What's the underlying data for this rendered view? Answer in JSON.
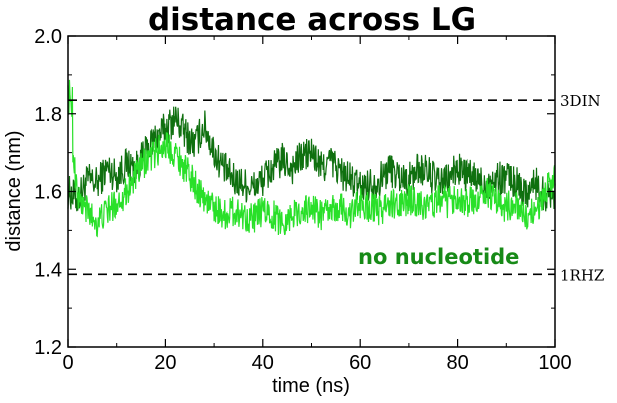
{
  "chart_data": {
    "type": "line",
    "title": "distance across LG",
    "xlabel": "time (ns)",
    "ylabel": "distance (nm)",
    "xlim": [
      0,
      100
    ],
    "ylim": [
      1.2,
      2.0
    ],
    "x_ticks": [
      0,
      20,
      40,
      60,
      80,
      100
    ],
    "x_tick_labels": [
      "0",
      "20",
      "40",
      "60",
      "80",
      "100"
    ],
    "y_ticks": [
      1.2,
      1.4,
      1.6,
      1.8,
      2.0
    ],
    "y_tick_labels": [
      "1.2",
      "1.4",
      "1.6",
      "1.8",
      "2.0"
    ],
    "grid": false,
    "reference_lines": [
      {
        "label": "3DIN",
        "y": 1.835,
        "style": "dashed",
        "color": "#000000"
      },
      {
        "label": "1RHZ",
        "y": 1.387,
        "style": "dashed",
        "color": "#000000"
      }
    ],
    "annotations": [
      {
        "text": "no nucleotide",
        "color": "#178a17"
      }
    ],
    "series": [
      {
        "color": "#0f700f",
        "x": [
          0,
          2,
          4,
          6,
          8,
          10,
          12,
          14,
          16,
          18,
          20,
          22,
          24,
          26,
          28,
          30,
          32,
          34,
          36,
          38,
          40,
          42,
          44,
          46,
          48,
          50,
          52,
          54,
          56,
          58,
          60,
          62,
          64,
          66,
          68,
          70,
          72,
          74,
          76,
          78,
          80,
          82,
          84,
          86,
          88,
          90,
          92,
          94,
          96,
          98,
          100
        ],
        "y": [
          1.6,
          1.58,
          1.63,
          1.62,
          1.66,
          1.64,
          1.67,
          1.66,
          1.7,
          1.74,
          1.76,
          1.79,
          1.75,
          1.72,
          1.77,
          1.7,
          1.66,
          1.63,
          1.62,
          1.61,
          1.63,
          1.66,
          1.68,
          1.66,
          1.69,
          1.7,
          1.66,
          1.68,
          1.65,
          1.63,
          1.61,
          1.62,
          1.63,
          1.66,
          1.64,
          1.63,
          1.66,
          1.65,
          1.62,
          1.63,
          1.66,
          1.64,
          1.63,
          1.62,
          1.63,
          1.64,
          1.62,
          1.6,
          1.62,
          1.59,
          1.6
        ]
      },
      {
        "color": "#29e029",
        "x": [
          0,
          2,
          4,
          6,
          8,
          10,
          12,
          14,
          16,
          18,
          20,
          22,
          24,
          26,
          28,
          30,
          32,
          34,
          36,
          38,
          40,
          42,
          44,
          46,
          48,
          50,
          52,
          54,
          56,
          58,
          60,
          62,
          64,
          66,
          68,
          70,
          72,
          74,
          76,
          78,
          80,
          82,
          84,
          86,
          88,
          90,
          92,
          94,
          96,
          98,
          100
        ],
        "y": [
          1.84,
          1.58,
          1.55,
          1.52,
          1.55,
          1.57,
          1.6,
          1.64,
          1.68,
          1.7,
          1.72,
          1.7,
          1.66,
          1.62,
          1.58,
          1.56,
          1.54,
          1.55,
          1.54,
          1.53,
          1.55,
          1.54,
          1.52,
          1.54,
          1.55,
          1.56,
          1.54,
          1.55,
          1.56,
          1.54,
          1.57,
          1.56,
          1.55,
          1.57,
          1.56,
          1.58,
          1.57,
          1.56,
          1.58,
          1.57,
          1.59,
          1.57,
          1.58,
          1.6,
          1.57,
          1.56,
          1.57,
          1.53,
          1.55,
          1.6,
          1.63
        ]
      }
    ]
  }
}
